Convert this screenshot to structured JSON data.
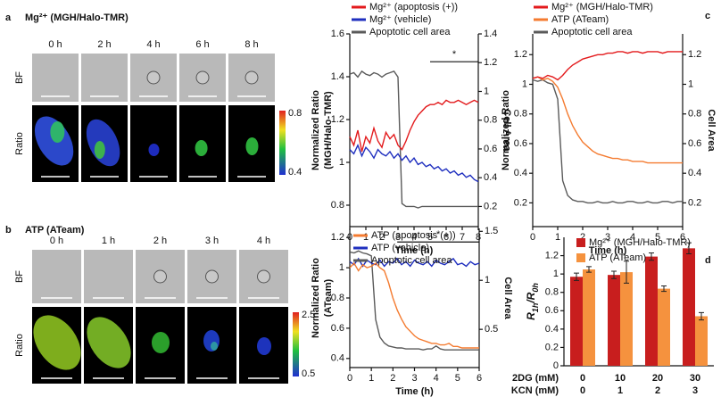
{
  "panels": [
    {
      "label": "a",
      "title": "Mg²⁺ (MGH/Halo-TMR)",
      "times": [
        "0 h",
        "2 h",
        "4 h",
        "6 h",
        "8 h"
      ],
      "rows": [
        "BF",
        "Ratio"
      ],
      "colorbar": [
        "0.8",
        "0.4"
      ]
    },
    {
      "label": "b",
      "title": "ATP (ATeam)",
      "times": [
        "0 h",
        "1 h",
        "2 h",
        "3 h",
        "4 h"
      ],
      "rows": [
        "BF",
        "Ratio"
      ],
      "colorbar": [
        "2.5",
        "0.5"
      ]
    }
  ],
  "chart_data": [
    {
      "type": "line",
      "xlabel": "Time (h)",
      "ylabel": [
        "Normalized Ratio",
        "(MGH/Halo-TMR)"
      ],
      "ylabel_color": "#e31a1c",
      "y2label": "Cell Area",
      "xlim": [
        0,
        8
      ],
      "xticks": [
        0,
        1,
        2,
        3,
        4,
        5,
        6,
        7,
        8
      ],
      "ylim": [
        0.7,
        1.6
      ],
      "yticks": [
        0.8,
        1,
        1.2,
        1.4,
        1.6
      ],
      "y2lim": [
        0.06,
        1.4
      ],
      "y2ticks": [
        0.2,
        0.4,
        0.6,
        0.8,
        1,
        1.2,
        1.4
      ],
      "x": [
        0,
        0.25,
        0.5,
        0.75,
        1,
        1.25,
        1.5,
        1.75,
        2,
        2.25,
        2.5,
        2.75,
        3,
        3.25,
        3.5,
        3.75,
        4,
        4.25,
        4.5,
        4.75,
        5,
        5.25,
        5.5,
        5.75,
        6,
        6.25,
        6.5,
        6.75,
        7,
        7.25,
        7.5,
        7.75,
        8
      ],
      "series": [
        {
          "name": "Mg²⁺ (apoptosis (+))",
          "color": "#e31a1c",
          "values": [
            1.12,
            1.08,
            1.15,
            1.05,
            1.12,
            1.09,
            1.16,
            1.1,
            1.07,
            1.14,
            1.11,
            1.13,
            1.08,
            1.06,
            1.1,
            1.15,
            1.19,
            1.22,
            1.24,
            1.26,
            1.27,
            1.27,
            1.28,
            1.27,
            1.29,
            1.28,
            1.28,
            1.29,
            1.28,
            1.27,
            1.28,
            1.29,
            1.28
          ]
        },
        {
          "name": "Mg²⁺ (vehicle)",
          "color": "#1f2fbf",
          "values": [
            1.06,
            1.04,
            1.08,
            1.03,
            1.07,
            1.05,
            1.02,
            1.06,
            1.04,
            1.03,
            1.05,
            1.02,
            1.04,
            1.01,
            1.03,
            1.0,
            1.02,
            0.99,
            1.0,
            0.98,
            0.99,
            0.97,
            0.98,
            0.96,
            0.97,
            0.95,
            0.96,
            0.94,
            0.95,
            0.93,
            0.94,
            0.92,
            0.91
          ]
        },
        {
          "name": "Apoptotic cell area",
          "color": "#5a5a5a",
          "axis": "y2",
          "values": [
            1.12,
            1.13,
            1.1,
            1.14,
            1.12,
            1.11,
            1.13,
            1.12,
            1.1,
            1.12,
            1.13,
            1.14,
            1.1,
            0.22,
            0.2,
            0.2,
            0.2,
            0.19,
            0.2,
            0.2,
            0.2,
            0.2,
            0.2,
            0.2,
            0.2,
            0.2,
            0.2,
            0.2,
            0.2,
            0.2,
            0.2,
            0.2,
            0.2
          ]
        }
      ],
      "annotation": {
        "text": "*",
        "x": [
          5,
          8
        ],
        "y": 1.47
      }
    },
    {
      "type": "line",
      "xlabel": "Time (h)",
      "ylabel": [
        "Normalized Ratio",
        "(ATeam)"
      ],
      "ylabel_color": "#f47b30",
      "y2label": "Cell Area",
      "xlim": [
        0,
        6
      ],
      "xticks": [
        0,
        1,
        2,
        3,
        4,
        5,
        6
      ],
      "ylim": [
        0.34,
        1.26
      ],
      "yticks": [
        0.4,
        0.6,
        0.8,
        1,
        1.2
      ],
      "y2lim": [
        0.11,
        1.53
      ],
      "y2ticks": [
        0.5,
        1,
        1.5
      ],
      "x": [
        0,
        0.2,
        0.4,
        0.6,
        0.8,
        1,
        1.2,
        1.4,
        1.6,
        1.8,
        2,
        2.2,
        2.4,
        2.6,
        2.8,
        3,
        3.2,
        3.4,
        3.6,
        3.8,
        4,
        4.2,
        4.4,
        4.6,
        4.8,
        5,
        5.2,
        5.4,
        5.6,
        5.8,
        6
      ],
      "series": [
        {
          "name": "ATP (apoptosis (+))",
          "color": "#f47b30",
          "values": [
            1.0,
            1.03,
            0.98,
            1.02,
            1.0,
            1.01,
            1.03,
            1.0,
            0.98,
            0.9,
            0.8,
            0.72,
            0.66,
            0.61,
            0.58,
            0.55,
            0.53,
            0.52,
            0.51,
            0.5,
            0.5,
            0.49,
            0.49,
            0.5,
            0.48,
            0.48,
            0.47,
            0.47,
            0.47,
            0.47,
            0.47
          ]
        },
        {
          "name": "ATP (vehicle)",
          "color": "#1f2fbf",
          "values": [
            1.04,
            1.02,
            1.06,
            1.01,
            1.05,
            1.03,
            1.02,
            1.05,
            1.01,
            1.04,
            1.03,
            1.06,
            1.02,
            1.04,
            1.01,
            1.05,
            1.03,
            1.02,
            1.04,
            1.01,
            1.05,
            1.03,
            1.02,
            1.04,
            1.06,
            1.02,
            1.03,
            1.01,
            1.04,
            1.02,
            1.03
          ]
        },
        {
          "name": "Apoptotic cell area",
          "color": "#5a5a5a",
          "axis": "y2",
          "values": [
            1.29,
            1.28,
            1.3,
            1.28,
            1.27,
            1.25,
            0.6,
            0.42,
            0.36,
            0.33,
            0.32,
            0.31,
            0.31,
            0.3,
            0.3,
            0.3,
            0.3,
            0.29,
            0.3,
            0.3,
            0.33,
            0.3,
            0.29,
            0.29,
            0.29,
            0.29,
            0.29,
            0.29,
            0.29,
            0.29,
            0.29
          ]
        }
      ],
      "annotation": {
        "text": "*",
        "x": [
          2.2,
          6
        ],
        "y": 1.17
      }
    },
    {
      "type": "line",
      "label": "c",
      "xlabel": "Time (h)",
      "ylabel": [
        "Normalized Ratio"
      ],
      "ylabel_color": "#e31a1c",
      "y2label": "Cell Area",
      "xlim": [
        0,
        6
      ],
      "xticks": [
        0,
        1,
        2,
        3,
        4,
        5,
        6
      ],
      "ylim": [
        0.04,
        1.34
      ],
      "yticks": [
        0.2,
        0.4,
        0.6,
        0.8,
        1,
        1.2
      ],
      "y2lim": [
        0.04,
        1.34
      ],
      "y2ticks": [
        0.2,
        0.4,
        0.6,
        0.8,
        1,
        1.2
      ],
      "x": [
        0,
        0.2,
        0.4,
        0.6,
        0.8,
        1,
        1.2,
        1.4,
        1.6,
        1.8,
        2,
        2.2,
        2.4,
        2.6,
        2.8,
        3,
        3.2,
        3.4,
        3.6,
        3.8,
        4,
        4.2,
        4.4,
        4.6,
        4.8,
        5,
        5.2,
        5.4,
        5.6,
        5.8,
        6
      ],
      "series": [
        {
          "name": "Mg²⁺ (MGH/Halo-TMR)",
          "color": "#e31a1c",
          "values": [
            1.04,
            1.05,
            1.04,
            1.06,
            1.05,
            1.03,
            1.06,
            1.1,
            1.13,
            1.15,
            1.17,
            1.18,
            1.19,
            1.2,
            1.2,
            1.21,
            1.21,
            1.22,
            1.22,
            1.21,
            1.22,
            1.22,
            1.21,
            1.22,
            1.22,
            1.22,
            1.21,
            1.22,
            1.22,
            1.22,
            1.22
          ]
        },
        {
          "name": "ATP (ATeam)",
          "color": "#f47b30",
          "values": [
            1.04,
            1.05,
            1.03,
            1.04,
            1.02,
            0.98,
            0.9,
            0.8,
            0.72,
            0.66,
            0.61,
            0.58,
            0.55,
            0.53,
            0.52,
            0.51,
            0.5,
            0.5,
            0.49,
            0.49,
            0.48,
            0.48,
            0.48,
            0.47,
            0.47,
            0.47,
            0.47,
            0.47,
            0.47,
            0.47,
            0.47
          ]
        },
        {
          "name": "Apoptotic cell area",
          "color": "#5a5a5a",
          "axis": "y2",
          "values": [
            1.03,
            1.02,
            1.03,
            1.01,
            1.0,
            0.9,
            0.35,
            0.25,
            0.22,
            0.21,
            0.21,
            0.2,
            0.2,
            0.21,
            0.2,
            0.2,
            0.21,
            0.2,
            0.2,
            0.21,
            0.21,
            0.2,
            0.2,
            0.21,
            0.2,
            0.2,
            0.21,
            0.21,
            0.2,
            0.21,
            0.21
          ]
        }
      ]
    },
    {
      "type": "bar",
      "label": "d",
      "ylabel": [
        "R",
        "1h",
        "/R",
        "0h"
      ],
      "categories": [
        "0",
        "10",
        "20",
        "30"
      ],
      "categories2": [
        "0",
        "1",
        "2",
        "3"
      ],
      "row_labels": [
        "2DG (mM)",
        "KCN (mM)"
      ],
      "ylim": [
        0,
        1.4
      ],
      "yticks": [
        0,
        0.2,
        0.4,
        0.6,
        0.8,
        1,
        1.2
      ],
      "series": [
        {
          "name": "Mg²⁺ (MGH/Halo-TMR)",
          "color": "#c81e1e",
          "values": [
            0.97,
            0.99,
            1.19,
            1.28
          ],
          "errors": [
            0.04,
            0.04,
            0.04,
            0.06
          ]
        },
        {
          "name": "ATP (ATeam)",
          "color": "#f5923e",
          "values": [
            1.05,
            1.02,
            0.84,
            0.54
          ],
          "errors": [
            0.03,
            0.12,
            0.03,
            0.04
          ]
        }
      ]
    }
  ]
}
